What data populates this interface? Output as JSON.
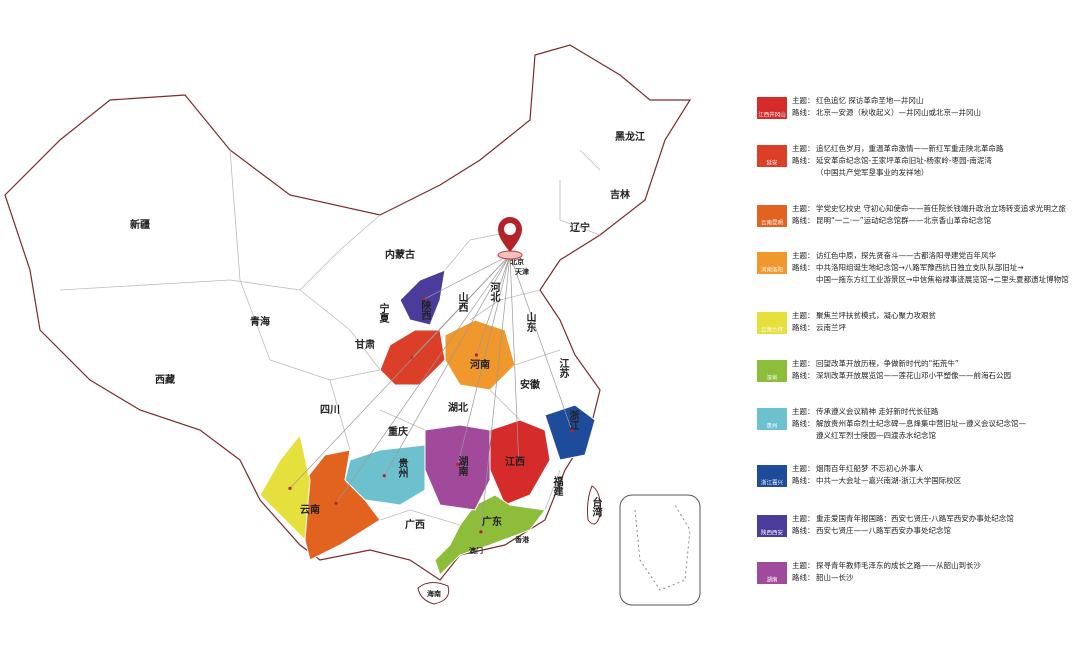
{
  "map": {
    "provinces": [
      "新疆",
      "西藏",
      "青海",
      "甘肃",
      "内蒙古",
      "黑龙江",
      "吉林",
      "辽宁",
      "宁夏",
      "陕西",
      "山西",
      "河北",
      "山东",
      "河南",
      "江苏",
      "安徽",
      "湖北",
      "四川",
      "重庆",
      "贵州",
      "湖南",
      "江西",
      "浙江",
      "福建",
      "云南",
      "广西",
      "广东",
      "台湾",
      "澳门",
      "香港",
      "海南",
      "北京",
      "天津"
    ]
  },
  "legend": {
    "labels": {
      "theme": "主题：",
      "route": "路线："
    },
    "items": [
      {
        "color": "#d62b2b",
        "tag": "江西井冈山",
        "theme": [
          "红色追忆 探访革命圣地—井冈山"
        ],
        "route": [
          "北京—安源（秋收起义）—井冈山或北京—井冈山"
        ]
      },
      {
        "color": "#dc3f27",
        "tag": "延安",
        "theme": [
          "追忆红色岁月，重温革命激情——新红军重走陕北革命路"
        ],
        "route": [
          "延安革命纪念馆-王家坪革命旧址-杨家岭-枣园-南泥湾",
          "（中国共产党军垦事业的发祥地）"
        ]
      },
      {
        "color": "#e2631f",
        "tag": "云南昆明",
        "theme": [
          "学党史忆校史 守初心知使命——首任院长钱端升政治立场转变追求光明之旅"
        ],
        "route": [
          "昆明“一二·一”运动纪念馆群——北京香山革命纪念馆"
        ]
      },
      {
        "color": "#f0982c",
        "tag": "河南洛阳",
        "theme": [
          "访红色中原，探先贤奋斗——古都洛阳寻建党百年风华"
        ],
        "route": [
          "中共洛阳组诞生地纪念馆→八路军豫西抗日独立支队队部旧址→",
          "中国一拖东方红工业游景区→中信焦裕禄事迹展览馆→二里头夏都遗址博物馆"
        ]
      },
      {
        "color": "#e6e03c",
        "tag": "云南兰坪",
        "theme": [
          "聚焦兰坪扶贫模式，凝心聚力攻艰贫"
        ],
        "route": [
          "云南兰坪"
        ]
      },
      {
        "color": "#8dbd3b",
        "tag": "深圳",
        "theme": [
          "回望改革开放历程，争做新时代的“拓荒牛”"
        ],
        "route": [
          "深圳改革开放展览馆——莲花山邓小平塑像——前海石公园"
        ]
      },
      {
        "color": "#6dc1cf",
        "tag": "贵州",
        "theme": [
          "传承遵义会议精神 走好新时代长征路"
        ],
        "route": [
          "解放贵州革命烈士纪念碑—息烽集中营旧址—遵义会议纪念馆—",
          "遵义红军烈士陵园—四渡赤水纪念馆"
        ]
      },
      {
        "color": "#1f4b9b",
        "tag": "浙江嘉兴",
        "theme": [
          "烟雨百年红船梦 不忘初心外事人"
        ],
        "route": [
          "中共一大会址—嘉兴南湖-浙江大学国际校区"
        ]
      },
      {
        "color": "#4b3b9b",
        "tag": "陕西西安",
        "theme": [
          "重走爱国青年报国路：西安七贤庄-八路军西安办事处纪念馆"
        ],
        "route": [
          "西安七贤庄——八路军西安办事处纪念馆"
        ]
      },
      {
        "color": "#a14a9b",
        "tag": "湖南",
        "theme": [
          "探寻青年教师毛泽东的成长之路——从韶山到长沙"
        ],
        "route": [
          "韶山—长沙"
        ]
      }
    ]
  }
}
